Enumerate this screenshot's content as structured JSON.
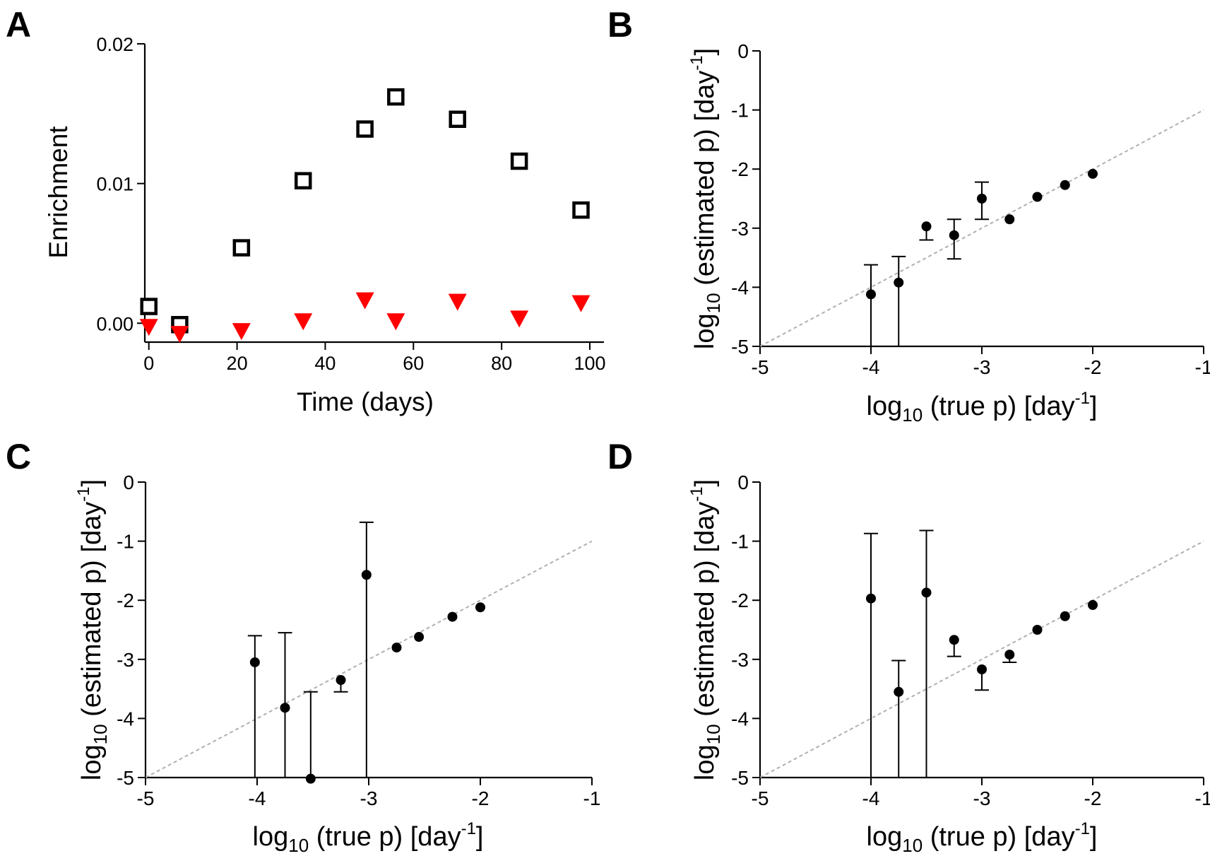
{
  "panels": [
    {
      "id": "A",
      "label": "A",
      "chart_data": {
        "type": "scatter",
        "xlabel": "Time (days)",
        "ylabel": "Enrichment",
        "xlim": [
          -3,
          100
        ],
        "ylim": [
          -0.0012,
          0.02
        ],
        "xticks": [
          0,
          20,
          40,
          60,
          80,
          100
        ],
        "xtick_labels": [
          "0",
          "20",
          "40",
          "60",
          "80",
          "100"
        ],
        "yticks": [
          0,
          0.01,
          0.02
        ],
        "ytick_labels": [
          "0.00",
          "0.01",
          "0.02"
        ],
        "grid": false,
        "series": [
          {
            "name": "open squares",
            "marker": "square-open",
            "color": "#000000",
            "x": [
              0,
              7,
              21,
              35,
              49,
              56,
              70,
              84,
              98
            ],
            "y": [
              0.0012,
              -0.0001,
              0.0054,
              0.0102,
              0.0139,
              0.0162,
              0.0146,
              0.0116,
              0.0081
            ]
          },
          {
            "name": "red triangles",
            "marker": "triangle-down",
            "color": "#ff0000",
            "x": [
              0,
              7,
              21,
              35,
              49,
              56,
              70,
              84,
              98
            ],
            "y": [
              -0.0003,
              -0.0008,
              -0.0006,
              0.0001,
              0.0016,
              0.0001,
              0.0015,
              0.0003,
              0.0014
            ]
          }
        ]
      }
    },
    {
      "id": "B",
      "label": "B",
      "chart_data": {
        "type": "scatter",
        "xlabel": {
          "base": "log",
          "sub": "10",
          "mid": " (true p) [day",
          "sup": "-1",
          "end": "]"
        },
        "ylabel": {
          "base": "log",
          "sub": "10",
          "mid": " (estimated p) [day",
          "sup": "-1",
          "end": "]"
        },
        "xlim": [
          -5,
          -1
        ],
        "ylim": [
          -5,
          0
        ],
        "xticks": [
          -5,
          -4,
          -3,
          -2,
          -1
        ],
        "xtick_labels": [
          "-5",
          "-4",
          "-3",
          "-2",
          "-1"
        ],
        "yticks": [
          -5,
          -4,
          -3,
          -2,
          -1,
          0
        ],
        "ytick_labels": [
          "-5",
          "-4",
          "-3",
          "-2",
          "-1",
          "0"
        ],
        "grid": false,
        "identity_line": {
          "from": [
            -5,
            -5
          ],
          "to": [
            -1,
            -1
          ],
          "color": "#b0b0b0",
          "style": "dashed"
        },
        "points": [
          {
            "x": -4.0,
            "y": -4.12,
            "err_lo": -5.0,
            "err_hi": -3.62
          },
          {
            "x": -3.75,
            "y": -3.92,
            "err_lo": -5.0,
            "err_hi": -3.48
          },
          {
            "x": -3.5,
            "y": -2.97,
            "err_lo": -3.2,
            "err_hi": null
          },
          {
            "x": -3.25,
            "y": -3.12,
            "err_lo": -3.52,
            "err_hi": -2.85
          },
          {
            "x": -3.0,
            "y": -2.5,
            "err_lo": -2.85,
            "err_hi": -2.22
          },
          {
            "x": -2.75,
            "y": -2.85,
            "err_lo": null,
            "err_hi": null
          },
          {
            "x": -2.5,
            "y": -2.47,
            "err_lo": null,
            "err_hi": null
          },
          {
            "x": -2.25,
            "y": -2.27,
            "err_lo": null,
            "err_hi": null
          },
          {
            "x": -2.0,
            "y": -2.08,
            "err_lo": null,
            "err_hi": null
          }
        ]
      }
    },
    {
      "id": "C",
      "label": "C",
      "chart_data": {
        "type": "scatter",
        "xlabel": {
          "base": "log",
          "sub": "10",
          "mid": " (true p) [day",
          "sup": "-1",
          "end": "]"
        },
        "ylabel": {
          "base": "log",
          "sub": "10",
          "mid": " (estimated p) [day",
          "sup": "-1",
          "end": "]"
        },
        "xlim": [
          -5,
          -1
        ],
        "ylim": [
          -5,
          0
        ],
        "xticks": [
          -5,
          -4,
          -3,
          -2,
          -1
        ],
        "xtick_labels": [
          "-5",
          "-4",
          "-3",
          "-2",
          "-1"
        ],
        "yticks": [
          -5,
          -4,
          -3,
          -2,
          -1,
          0
        ],
        "ytick_labels": [
          "-5",
          "-4",
          "-3",
          "-2",
          "-1",
          "0"
        ],
        "grid": false,
        "identity_line": {
          "from": [
            -5,
            -5
          ],
          "to": [
            -1,
            -1
          ],
          "color": "#b0b0b0",
          "style": "dashed"
        },
        "points": [
          {
            "x": -4.02,
            "y": -3.05,
            "err_lo": -5.0,
            "err_hi": -2.6
          },
          {
            "x": -3.75,
            "y": -3.82,
            "err_lo": -5.0,
            "err_hi": -2.55
          },
          {
            "x": -3.52,
            "y": -5.02,
            "err_lo": -5.0,
            "err_hi": -3.55
          },
          {
            "x": -3.25,
            "y": -3.35,
            "err_lo": -3.55,
            "err_hi": null
          },
          {
            "x": -3.02,
            "y": -1.57,
            "err_lo": -5.0,
            "err_hi": -0.68
          },
          {
            "x": -2.75,
            "y": -2.8,
            "err_lo": null,
            "err_hi": null
          },
          {
            "x": -2.55,
            "y": -2.62,
            "err_lo": null,
            "err_hi": null
          },
          {
            "x": -2.25,
            "y": -2.28,
            "err_lo": null,
            "err_hi": null
          },
          {
            "x": -2.0,
            "y": -2.12,
            "err_lo": null,
            "err_hi": null
          }
        ]
      }
    },
    {
      "id": "D",
      "label": "D",
      "chart_data": {
        "type": "scatter",
        "xlabel": {
          "base": "log",
          "sub": "10",
          "mid": " (true p) [day",
          "sup": "-1",
          "end": "]"
        },
        "ylabel": {
          "base": "log",
          "sub": "10",
          "mid": " (estimated p) [day",
          "sup": "-1",
          "end": "]"
        },
        "xlim": [
          -5,
          -1
        ],
        "ylim": [
          -5,
          0
        ],
        "xticks": [
          -5,
          -4,
          -3,
          -2,
          -1
        ],
        "xtick_labels": [
          "-5",
          "-4",
          "-3",
          "-2",
          "-1"
        ],
        "yticks": [
          -5,
          -4,
          -3,
          -2,
          -1,
          0
        ],
        "ytick_labels": [
          "-5",
          "-4",
          "-3",
          "-2",
          "-1",
          "0"
        ],
        "grid": false,
        "identity_line": {
          "from": [
            -5,
            -5
          ],
          "to": [
            -1,
            -1
          ],
          "color": "#b0b0b0",
          "style": "dashed"
        },
        "points": [
          {
            "x": -4.0,
            "y": -1.97,
            "err_lo": -5.0,
            "err_hi": -0.87
          },
          {
            "x": -3.75,
            "y": -3.55,
            "err_lo": -5.0,
            "err_hi": -3.02
          },
          {
            "x": -3.5,
            "y": -1.87,
            "err_lo": -5.0,
            "err_hi": -0.82
          },
          {
            "x": -3.25,
            "y": -2.67,
            "err_lo": -2.95,
            "err_hi": null
          },
          {
            "x": -3.0,
            "y": -3.17,
            "err_lo": -3.52,
            "err_hi": null
          },
          {
            "x": -2.75,
            "y": -2.92,
            "err_lo": -3.05,
            "err_hi": null
          },
          {
            "x": -2.5,
            "y": -2.5,
            "err_lo": null,
            "err_hi": null
          },
          {
            "x": -2.25,
            "y": -2.27,
            "err_lo": null,
            "err_hi": null
          },
          {
            "x": -2.0,
            "y": -2.08,
            "err_lo": null,
            "err_hi": null
          }
        ]
      }
    }
  ]
}
